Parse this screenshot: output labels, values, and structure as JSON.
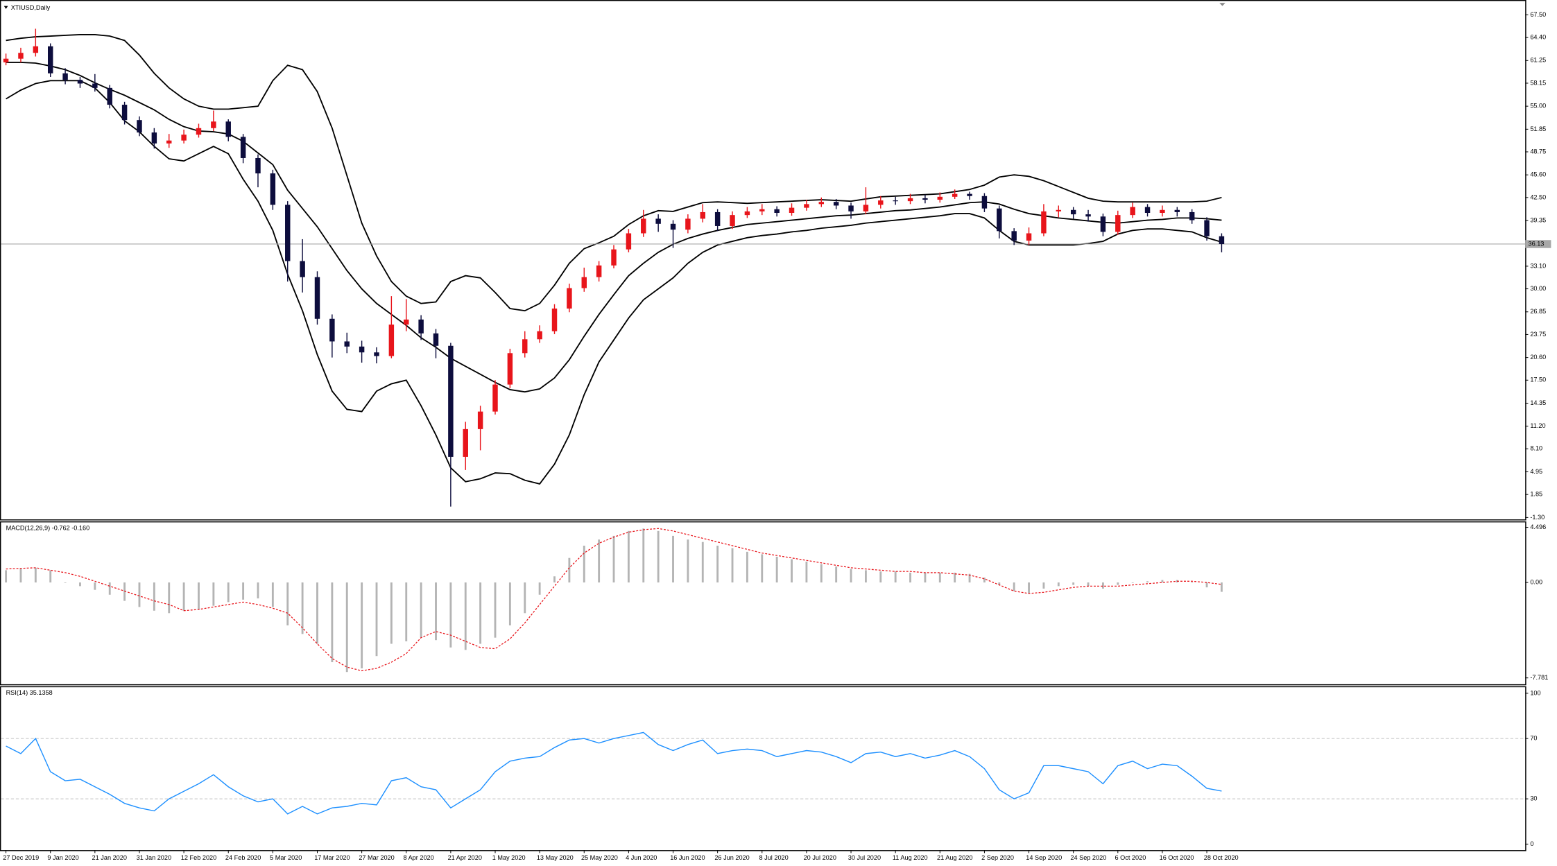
{
  "chart_data": [
    {
      "type": "candlestick",
      "title": "XTIUSD,Daily",
      "categories": [
        "27 Dec 2019",
        null,
        null,
        "9 Jan 2020",
        null,
        null,
        "21 Jan 2020",
        null,
        null,
        "31 Jan 2020",
        null,
        null,
        "12 Feb 2020",
        null,
        null,
        "24 Feb 2020",
        null,
        null,
        "5 Mar 2020",
        null,
        null,
        "17 Mar 2020",
        null,
        null,
        "27 Mar 2020",
        null,
        null,
        "8 Apr 2020",
        null,
        null,
        "21 Apr 2020",
        null,
        null,
        "1 May 2020",
        null,
        null,
        "13 May 2020",
        null,
        null,
        "25 May 2020",
        null,
        null,
        "4 Jun 2020",
        null,
        null,
        "16 Jun 2020",
        null,
        null,
        "26 Jun 2020",
        null,
        null,
        "8 Jul 2020",
        null,
        null,
        "20 Jul 2020",
        null,
        null,
        "30 Jul 2020",
        null,
        null,
        "11 Aug 2020",
        null,
        null,
        "21 Aug 2020",
        null,
        null,
        "2 Sep 2020",
        null,
        null,
        "14 Sep 2020",
        null,
        null,
        "24 Sep 2020",
        null,
        null,
        "6 Oct 2020",
        null,
        null,
        "16 Oct 2020",
        null,
        null,
        "28 Oct 2020",
        null
      ],
      "open": [
        61.0,
        61.5,
        62.3,
        63.2,
        59.5,
        58.6,
        58.1,
        57.5,
        55.2,
        53.1,
        51.4,
        49.9,
        50.3,
        51.1,
        52.0,
        52.9,
        50.8,
        47.9,
        45.8,
        41.5,
        33.8,
        31.6,
        25.9,
        22.8,
        22.1,
        21.3,
        20.8,
        25.1,
        25.8,
        23.9,
        22.2,
        7.0,
        10.8,
        13.2,
        16.9,
        21.2,
        23.1,
        24.2,
        27.3,
        30.1,
        31.6,
        33.2,
        35.4,
        37.6,
        39.6,
        38.9,
        38.1,
        39.6,
        40.5,
        38.6,
        40.1,
        40.6,
        40.9,
        40.4,
        41.1,
        41.6,
        41.9,
        41.4,
        40.6,
        41.5,
        42.1,
        42.0,
        42.4,
        42.2,
        42.6,
        43.0,
        42.7,
        41.0,
        37.9,
        36.6,
        37.6,
        40.6,
        40.8,
        40.2,
        39.9,
        37.8,
        40.1,
        41.2,
        40.4,
        40.8,
        40.5,
        39.4,
        37.2
      ],
      "high": [
        62.2,
        63.0,
        65.6,
        63.6,
        60.2,
        59.0,
        59.4,
        57.9,
        55.6,
        53.6,
        52.0,
        51.2,
        51.8,
        52.6,
        54.4,
        53.2,
        51.2,
        48.4,
        46.3,
        42.0,
        36.8,
        32.4,
        26.5,
        24.0,
        22.9,
        22.0,
        29.0,
        28.6,
        26.4,
        24.5,
        22.6,
        11.8,
        14.0,
        17.5,
        21.8,
        24.2,
        25.0,
        27.9,
        30.7,
        32.9,
        33.8,
        36.0,
        38.2,
        40.8,
        40.2,
        39.4,
        40.2,
        41.6,
        40.9,
        40.6,
        41.2,
        41.6,
        41.3,
        41.7,
        42.2,
        42.5,
        42.3,
        41.8,
        43.9,
        42.7,
        42.6,
        43.0,
        42.9,
        43.2,
        43.6,
        43.3,
        43.1,
        41.4,
        38.3,
        38.4,
        41.6,
        41.4,
        41.2,
        40.8,
        40.3,
        40.7,
        41.8,
        41.6,
        41.4,
        41.2,
        40.9,
        39.8,
        37.6
      ],
      "low": [
        60.6,
        61.0,
        61.8,
        59.0,
        58.0,
        57.5,
        57.0,
        54.7,
        52.5,
        50.9,
        49.2,
        49.3,
        49.9,
        50.7,
        51.6,
        50.2,
        47.2,
        43.9,
        40.8,
        31.0,
        29.5,
        25.1,
        20.6,
        21.2,
        19.9,
        19.8,
        20.5,
        24.2,
        23.0,
        20.5,
        0.2,
        5.2,
        7.9,
        12.8,
        16.4,
        20.6,
        22.6,
        23.8,
        26.8,
        29.6,
        31.0,
        32.8,
        35.0,
        37.1,
        37.8,
        35.6,
        37.6,
        39.1,
        37.9,
        38.2,
        39.7,
        40.1,
        39.9,
        40.0,
        40.7,
        41.2,
        40.9,
        39.6,
        40.2,
        41.0,
        41.5,
        41.6,
        41.7,
        41.8,
        42.3,
        42.2,
        40.5,
        36.9,
        36.0,
        36.0,
        37.2,
        39.8,
        39.6,
        39.2,
        37.2,
        37.4,
        39.7,
        39.9,
        39.9,
        39.9,
        38.9,
        36.6,
        35.0
      ],
      "close": [
        61.5,
        62.3,
        63.2,
        59.5,
        58.6,
        58.1,
        57.5,
        55.2,
        53.1,
        51.4,
        49.9,
        50.3,
        51.1,
        52.0,
        52.9,
        50.8,
        47.9,
        45.8,
        41.5,
        33.8,
        31.6,
        25.9,
        22.8,
        22.1,
        21.3,
        20.8,
        25.1,
        25.8,
        23.9,
        22.2,
        7.0,
        10.8,
        13.2,
        16.9,
        21.2,
        23.1,
        24.2,
        27.3,
        30.1,
        31.6,
        33.2,
        35.4,
        37.6,
        39.6,
        38.9,
        38.1,
        39.6,
        40.5,
        38.6,
        40.1,
        40.6,
        40.9,
        40.4,
        41.1,
        41.6,
        41.9,
        41.4,
        40.6,
        41.5,
        42.1,
        42.0,
        42.4,
        42.2,
        42.6,
        43.0,
        42.7,
        41.0,
        37.9,
        36.6,
        37.6,
        40.6,
        40.8,
        40.2,
        39.9,
        37.8,
        40.1,
        41.2,
        40.4,
        40.8,
        40.5,
        39.4,
        37.2,
        36.13
      ],
      "bands": {
        "upper": [
          64.0,
          64.3,
          64.5,
          64.6,
          64.7,
          64.8,
          64.8,
          64.6,
          64.0,
          62.0,
          59.5,
          57.5,
          56.0,
          55.0,
          54.6,
          54.6,
          54.8,
          55.0,
          58.5,
          60.6,
          60.0,
          57.0,
          52.0,
          45.5,
          39.0,
          34.5,
          31.0,
          29.0,
          28.0,
          28.2,
          31.0,
          31.8,
          31.5,
          29.5,
          27.3,
          27.0,
          28.0,
          30.5,
          33.5,
          35.5,
          36.3,
          37.2,
          38.8,
          40.0,
          40.7,
          40.6,
          41.2,
          41.8,
          41.9,
          41.8,
          41.7,
          41.8,
          41.9,
          42.0,
          42.1,
          42.2,
          42.1,
          42.0,
          42.3,
          42.6,
          42.7,
          42.8,
          42.9,
          43.0,
          43.3,
          43.6,
          44.2,
          45.3,
          45.6,
          45.4,
          44.8,
          44.0,
          43.2,
          42.4,
          42.0,
          41.9,
          41.9,
          41.9,
          41.9,
          41.9,
          41.9,
          42.0,
          42.5
        ],
        "middle": [
          61.0,
          61.0,
          60.9,
          60.5,
          60.0,
          59.2,
          58.2,
          57.3,
          56.5,
          55.5,
          54.5,
          53.2,
          52.2,
          51.6,
          51.5,
          51.2,
          50.2,
          48.6,
          47.0,
          43.5,
          41.0,
          38.5,
          35.5,
          32.5,
          30.0,
          28.0,
          26.5,
          25.0,
          23.3,
          22.0,
          20.5,
          19.4,
          18.3,
          17.2,
          16.2,
          15.9,
          16.3,
          17.8,
          20.3,
          23.5,
          26.5,
          29.2,
          31.8,
          33.5,
          35.0,
          36.1,
          36.9,
          37.5,
          38.0,
          38.4,
          38.8,
          39.0,
          39.2,
          39.4,
          39.6,
          39.8,
          40.0,
          40.1,
          40.3,
          40.5,
          40.7,
          40.8,
          41.0,
          41.2,
          41.5,
          41.8,
          41.9,
          41.6,
          40.9,
          40.3,
          40.0,
          39.7,
          39.5,
          39.3,
          39.1,
          39.0,
          39.2,
          39.4,
          39.5,
          39.7,
          39.7,
          39.6,
          39.4
        ],
        "lower": [
          56.0,
          57.2,
          58.1,
          58.5,
          58.5,
          58.5,
          57.5,
          55.5,
          53.0,
          51.5,
          49.5,
          47.8,
          47.5,
          48.5,
          49.5,
          48.5,
          45.0,
          42.0,
          38.0,
          32.0,
          27.0,
          21.0,
          16.0,
          13.5,
          13.2,
          16.0,
          17.0,
          17.5,
          14.0,
          10.0,
          5.5,
          3.6,
          4.0,
          4.8,
          4.7,
          3.8,
          3.3,
          6.0,
          10.0,
          15.5,
          20.0,
          23.0,
          26.0,
          28.5,
          30.0,
          31.5,
          33.5,
          35.0,
          36.0,
          36.5,
          37.0,
          37.3,
          37.5,
          37.8,
          38.0,
          38.3,
          38.5,
          38.7,
          39.0,
          39.2,
          39.4,
          39.6,
          39.8,
          40.0,
          40.3,
          40.3,
          39.7,
          38.0,
          36.5,
          36.0,
          36.0,
          36.0,
          36.0,
          36.2,
          36.5,
          37.5,
          38.0,
          38.2,
          38.2,
          38.0,
          37.8,
          37.0,
          36.4
        ]
      },
      "last_price": 36.13,
      "up_color": "#e8151b",
      "down_color": "#0d0d3d",
      "band_color": "#000000",
      "last_price_color": "#a8a8a8",
      "ylim": [
        -1.56,
        69.4
      ],
      "yticks": [
        {
          "value": 67.5,
          "label": "67.50"
        },
        {
          "value": 64.4,
          "label": "64.40"
        },
        {
          "value": 61.25,
          "label": "61.25"
        },
        58.15,
        {
          "value": 55,
          "label": "55.00"
        },
        51.85,
        48.75,
        {
          "value": 45.6,
          "label": "45.60"
        },
        {
          "value": 42.5,
          "label": "42.50"
        },
        39.35,
        {
          "value": 33.1,
          "label": "33.10"
        },
        {
          "value": 30,
          "label": "30.00"
        },
        26.85,
        23.75,
        {
          "value": 20.6,
          "label": "20.60"
        },
        {
          "value": 17.5,
          "label": "17.50"
        },
        14.35,
        {
          "value": 11.2,
          "label": "11.20"
        },
        {
          "value": 8.1,
          "label": "8.10"
        },
        4.95,
        1.85,
        {
          "value": -1.3,
          "label": "-1.30"
        }
      ]
    },
    {
      "type": "macd",
      "title": "MACD(12,26,9) -0.762 -0.160",
      "histogram": [
        1.0,
        1.1,
        1.2,
        1.0,
        0.0,
        -0.3,
        -0.6,
        -1.0,
        -1.5,
        -2.0,
        -2.3,
        -2.5,
        -2.3,
        -2.2,
        -1.9,
        -1.6,
        -1.4,
        -1.3,
        -2.0,
        -3.5,
        -4.2,
        -5.0,
        -6.5,
        -7.3,
        -7.0,
        -6.0,
        -5.0,
        -4.8,
        -4.5,
        -4.7,
        -5.3,
        -5.5,
        -5.0,
        -4.5,
        -3.5,
        -2.5,
        -1.0,
        0.5,
        2.0,
        3.0,
        3.5,
        3.8,
        4.2,
        4.4,
        4.2,
        3.8,
        3.5,
        3.3,
        3.0,
        2.8,
        2.5,
        2.3,
        2.1,
        1.9,
        1.7,
        1.5,
        1.3,
        1.1,
        1.0,
        0.9,
        0.9,
        0.8,
        0.8,
        0.8,
        0.8,
        0.7,
        0.4,
        -0.2,
        -0.7,
        -0.9,
        -0.5,
        -0.3,
        -0.2,
        -0.3,
        -0.5,
        -0.2,
        0.0,
        0.1,
        0.2,
        0.2,
        0.0,
        -0.4,
        -0.762
      ],
      "signal": [
        1.1,
        1.15,
        1.2,
        1.0,
        0.8,
        0.5,
        0.1,
        -0.3,
        -0.7,
        -1.1,
        -1.5,
        -1.8,
        -2.3,
        -2.2,
        -2.0,
        -1.8,
        -1.6,
        -1.8,
        -2.1,
        -2.5,
        -3.7,
        -5.0,
        -6.2,
        -6.9,
        -7.2,
        -7.0,
        -6.5,
        -5.8,
        -4.5,
        -4.0,
        -4.3,
        -4.8,
        -5.3,
        -5.4,
        -4.6,
        -3.3,
        -1.8,
        -0.3,
        1.2,
        2.4,
        3.2,
        3.7,
        4.1,
        4.3,
        4.4,
        4.2,
        3.9,
        3.6,
        3.3,
        3.0,
        2.7,
        2.4,
        2.2,
        2.0,
        1.8,
        1.6,
        1.4,
        1.2,
        1.1,
        1.0,
        0.9,
        0.9,
        0.8,
        0.8,
        0.7,
        0.6,
        0.3,
        -0.2,
        -0.7,
        -0.9,
        -0.8,
        -0.6,
        -0.4,
        -0.3,
        -0.3,
        -0.3,
        -0.2,
        -0.1,
        0.0,
        0.1,
        0.1,
        0.0,
        -0.16
      ],
      "histogram_color": "#b4b4b4",
      "signal_color": "#e8151b",
      "ylim": [
        -8.3,
        4.9
      ],
      "yticks": [
        4.496,
        {
          "value": 0,
          "label": "0.00"
        },
        -7.781
      ]
    },
    {
      "type": "line",
      "title": "RSI(14) 35.1358",
      "values": [
        65,
        60,
        70,
        48,
        42,
        43,
        38,
        33,
        27,
        24,
        22,
        30,
        35,
        40,
        46,
        38,
        32,
        28,
        30,
        20,
        25,
        20,
        24,
        25,
        27,
        26,
        42,
        44,
        38,
        36,
        24,
        30,
        36,
        48,
        55,
        57,
        58,
        64,
        69,
        70,
        67,
        70,
        72,
        74,
        66,
        62,
        66,
        69,
        60,
        62,
        63,
        62,
        58,
        60,
        62,
        61,
        58,
        54,
        60,
        61,
        58,
        60,
        57,
        59,
        62,
        58,
        50,
        36,
        30,
        34,
        52,
        52,
        50,
        48,
        40,
        52,
        55,
        50,
        53,
        52,
        45,
        37,
        35.1358
      ],
      "color": "#1e90ff",
      "level_color": "#c0c0c0",
      "ylim": [
        -4,
        104
      ],
      "yticks": [
        100,
        70,
        30,
        0
      ],
      "levels": [
        70,
        30
      ]
    }
  ]
}
